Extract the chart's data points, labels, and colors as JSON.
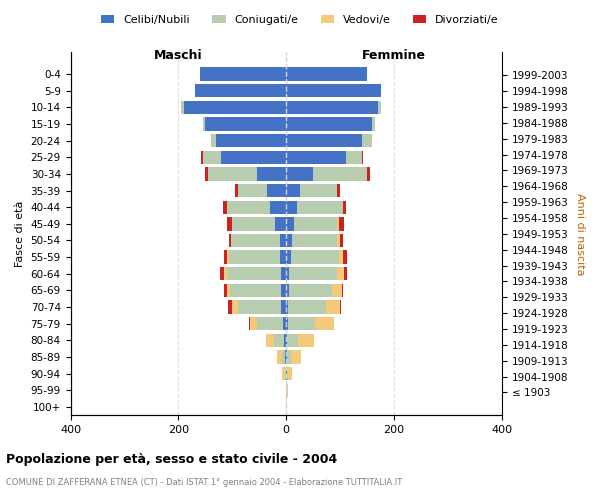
{
  "age_groups": [
    "100+",
    "95-99",
    "90-94",
    "85-89",
    "80-84",
    "75-79",
    "70-74",
    "65-69",
    "60-64",
    "55-59",
    "50-54",
    "45-49",
    "40-44",
    "35-39",
    "30-34",
    "25-29",
    "20-24",
    "15-19",
    "10-14",
    "5-9",
    "0-4"
  ],
  "birth_years": [
    "≤ 1903",
    "1904-1908",
    "1909-1913",
    "1914-1918",
    "1919-1923",
    "1924-1928",
    "1929-1933",
    "1934-1938",
    "1939-1943",
    "1944-1948",
    "1949-1953",
    "1954-1958",
    "1959-1963",
    "1964-1968",
    "1969-1973",
    "1974-1978",
    "1979-1983",
    "1984-1988",
    "1989-1993",
    "1994-1998",
    "1999-2003"
  ],
  "males": {
    "celibi": [
      0,
      0,
      1,
      2,
      4,
      5,
      10,
      10,
      10,
      12,
      12,
      20,
      30,
      35,
      55,
      120,
      130,
      150,
      190,
      170,
      160
    ],
    "coniugati": [
      0,
      0,
      2,
      5,
      18,
      50,
      80,
      95,
      100,
      95,
      90,
      80,
      80,
      55,
      90,
      35,
      10,
      5,
      5,
      0,
      0
    ],
    "vedovi": [
      0,
      1,
      5,
      10,
      15,
      12,
      10,
      5,
      5,
      3,
      0,
      0,
      0,
      0,
      0,
      0,
      0,
      0,
      0,
      0,
      0
    ],
    "divorziati": [
      0,
      0,
      0,
      0,
      0,
      2,
      8,
      6,
      8,
      5,
      5,
      10,
      8,
      5,
      5,
      3,
      0,
      0,
      0,
      0,
      0
    ]
  },
  "females": {
    "nubili": [
      0,
      0,
      1,
      1,
      2,
      4,
      4,
      5,
      5,
      8,
      10,
      15,
      20,
      25,
      50,
      110,
      140,
      160,
      170,
      175,
      150
    ],
    "coniugate": [
      0,
      1,
      2,
      8,
      20,
      50,
      70,
      80,
      90,
      90,
      85,
      80,
      85,
      70,
      100,
      30,
      20,
      5,
      5,
      0,
      0
    ],
    "vedove": [
      0,
      2,
      8,
      18,
      30,
      35,
      25,
      18,
      12,
      8,
      5,
      3,
      0,
      0,
      0,
      0,
      0,
      0,
      0,
      0,
      0
    ],
    "divorziate": [
      0,
      0,
      0,
      1,
      0,
      0,
      2,
      3,
      5,
      6,
      6,
      10,
      5,
      5,
      5,
      2,
      0,
      0,
      0,
      0,
      0
    ]
  },
  "colors": {
    "celibi_nubili": "#4472C4",
    "coniugati": "#B8CCB0",
    "vedovi": "#F5C97A",
    "divorziati": "#CC2222"
  },
  "xlim": 400,
  "title": "Popolazione per età, sesso e stato civile - 2004",
  "subtitle": "COMUNE DI ZAFFERANA ETNEA (CT) - Dati ISTAT 1° gennaio 2004 - Elaborazione TUTTITALIA.IT",
  "ylabel_left": "Fasce di età",
  "ylabel_right": "Anni di nascita",
  "xlabel_maschi": "Maschi",
  "xlabel_femmine": "Femmine",
  "legend_labels": [
    "Celibi/Nubili",
    "Coniugati/e",
    "Vedovi/e",
    "Divorziati/e"
  ]
}
